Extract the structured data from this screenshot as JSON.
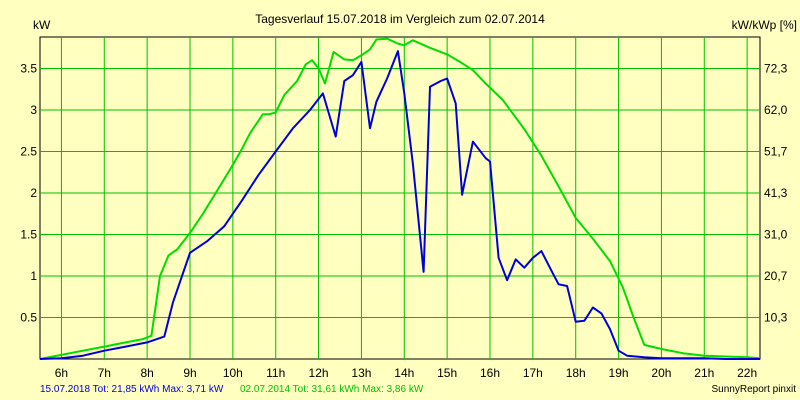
{
  "chart_data": {
    "type": "line",
    "title": "Tagesverlauf 15.07.2018 im Vergleich zum 02.07.2014",
    "ylabel_left": "kW",
    "ylabel_right": "kW/kWp [%]",
    "x_unit": "hour",
    "xlim": [
      5.5,
      22.3
    ],
    "ylim": [
      0,
      3.88
    ],
    "x_ticks": [
      6,
      7,
      8,
      9,
      10,
      11,
      12,
      13,
      14,
      15,
      16,
      17,
      18,
      19,
      20,
      21,
      22
    ],
    "x_tick_labels": [
      "6h",
      "7h",
      "8h",
      "9h",
      "10h",
      "11h",
      "12h",
      "13h",
      "14h",
      "15h",
      "16h",
      "17h",
      "18h",
      "19h",
      "20h",
      "21h",
      "22h"
    ],
    "y_left_ticks": [
      0.5,
      1,
      1.5,
      2,
      2.5,
      3,
      3.5
    ],
    "y_left_tick_labels": [
      "0.5",
      "1",
      "1.5",
      "2",
      "2.5",
      "3",
      "3.5"
    ],
    "y_right_ticks": [
      0.5,
      1,
      1.5,
      2,
      2.5,
      3,
      3.5
    ],
    "y_right_tick_labels": [
      "10,3",
      "20,7",
      "31,0",
      "41,3",
      "51,7",
      "62,0",
      "72,3"
    ],
    "grid": true,
    "background_color": "#FFFFC0",
    "grid_color": "#00C000",
    "series": [
      {
        "color": "#00DD00",
        "x": [
          5.5,
          6.0,
          6.5,
          7.0,
          7.5,
          7.9,
          8.1,
          8.3,
          8.5,
          8.7,
          9.0,
          9.3,
          9.6,
          10.0,
          10.2,
          10.4,
          10.7,
          10.85,
          11.0,
          11.2,
          11.5,
          11.7,
          11.85,
          12.0,
          12.15,
          12.35,
          12.6,
          12.8,
          13.0,
          13.2,
          13.35,
          13.6,
          13.85,
          14.0,
          14.2,
          14.6,
          15.0,
          15.3,
          15.6,
          15.9,
          16.3,
          16.8,
          17.2,
          17.6,
          18.0,
          18.4,
          18.8,
          19.1,
          19.35,
          19.6,
          20.0,
          20.5,
          21.0,
          21.5,
          22.0,
          22.3
        ],
        "y": [
          0.0,
          0.05,
          0.1,
          0.15,
          0.2,
          0.24,
          0.28,
          1.0,
          1.25,
          1.32,
          1.52,
          1.75,
          2.0,
          2.34,
          2.52,
          2.72,
          2.95,
          2.95,
          2.97,
          3.18,
          3.35,
          3.55,
          3.6,
          3.5,
          3.32,
          3.7,
          3.61,
          3.6,
          3.66,
          3.73,
          3.85,
          3.86,
          3.8,
          3.78,
          3.84,
          3.75,
          3.67,
          3.58,
          3.48,
          3.32,
          3.12,
          2.77,
          2.45,
          2.08,
          1.7,
          1.45,
          1.18,
          0.86,
          0.5,
          0.17,
          0.12,
          0.07,
          0.04,
          0.03,
          0.02,
          0.01
        ]
      },
      {
        "color": "#0000DD",
        "x": [
          5.5,
          6.0,
          6.5,
          7.0,
          7.5,
          8.0,
          8.4,
          8.6,
          9.0,
          9.4,
          9.8,
          10.2,
          10.6,
          11.0,
          11.4,
          11.8,
          12.1,
          12.4,
          12.6,
          12.8,
          13.0,
          13.2,
          13.35,
          13.6,
          13.85,
          14.0,
          14.2,
          14.45,
          14.6,
          14.85,
          15.0,
          15.2,
          15.35,
          15.6,
          15.9,
          16.0,
          16.2,
          16.4,
          16.6,
          16.8,
          17.0,
          17.2,
          17.45,
          17.6,
          17.8,
          18.0,
          18.2,
          18.4,
          18.6,
          18.8,
          19.0,
          19.2,
          19.4,
          19.6,
          20.0,
          20.5,
          21.0,
          21.5,
          22.0,
          22.3
        ],
        "y": [
          0.0,
          0.01,
          0.04,
          0.1,
          0.15,
          0.2,
          0.27,
          0.68,
          1.28,
          1.42,
          1.6,
          1.9,
          2.22,
          2.5,
          2.78,
          3.0,
          3.2,
          2.68,
          3.35,
          3.42,
          3.58,
          2.78,
          3.1,
          3.38,
          3.71,
          3.2,
          2.35,
          1.05,
          3.28,
          3.35,
          3.38,
          3.08,
          1.98,
          2.62,
          2.42,
          2.38,
          1.22,
          0.95,
          1.2,
          1.1,
          1.22,
          1.3,
          1.05,
          0.9,
          0.88,
          0.45,
          0.46,
          0.62,
          0.55,
          0.36,
          0.1,
          0.04,
          0.03,
          0.02,
          0.01,
          0.01,
          0.01,
          0.0,
          0.0,
          0.0
        ]
      }
    ],
    "legend_line_1": "15.07.2018 Tot: 21,85 kWh Max: 3,71 kW",
    "legend_line_2": "02.07.2014 Tot: 31,61 kWh Max: 3,86 kW",
    "credit": "SunnyReport pinxit"
  }
}
